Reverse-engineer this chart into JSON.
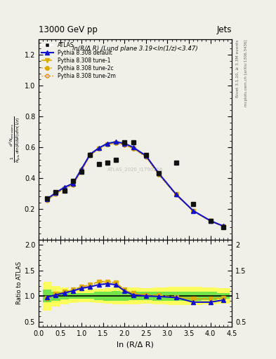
{
  "title_top": "13000 GeV pp",
  "title_right": "Jets",
  "inner_title": "ln(R/Δ R) (Lund plane 3.19<ln(1/z)<3.47)",
  "watermark": "ATLAS_2020_I1790256",
  "xlabel": "ln (R/Δ R)",
  "ylabel_ratio": "Ratio to ATLAS",
  "x_data": [
    0.2,
    0.4,
    0.6,
    0.8,
    1.0,
    1.2,
    1.4,
    1.6,
    1.8,
    2.0,
    2.2,
    2.5,
    2.8,
    3.2,
    3.6,
    4.0,
    4.3
  ],
  "atlas_y": [
    0.27,
    0.31,
    0.32,
    0.38,
    0.44,
    0.55,
    0.49,
    0.5,
    0.52,
    0.63,
    0.63,
    0.55,
    0.43,
    0.5,
    0.23,
    0.12,
    0.08
  ],
  "pythia_default_y": [
    0.265,
    0.305,
    0.34,
    0.365,
    0.46,
    0.555,
    0.595,
    0.625,
    0.635,
    0.625,
    0.6,
    0.545,
    0.43,
    0.295,
    0.188,
    0.123,
    0.088
  ],
  "pythia_tune1_y": [
    0.258,
    0.298,
    0.333,
    0.358,
    0.452,
    0.548,
    0.592,
    0.62,
    0.628,
    0.618,
    0.593,
    0.54,
    0.423,
    0.293,
    0.187,
    0.122,
    0.087
  ],
  "pythia_tune2c_y": [
    0.258,
    0.298,
    0.333,
    0.358,
    0.452,
    0.548,
    0.592,
    0.62,
    0.628,
    0.618,
    0.593,
    0.54,
    0.423,
    0.293,
    0.187,
    0.122,
    0.087
  ],
  "pythia_tune2m_y": [
    0.256,
    0.296,
    0.332,
    0.356,
    0.45,
    0.546,
    0.59,
    0.618,
    0.626,
    0.616,
    0.591,
    0.538,
    0.421,
    0.291,
    0.185,
    0.12,
    0.085
  ],
  "ratio_default": [
    0.98,
    1.02,
    1.06,
    1.1,
    1.15,
    1.18,
    1.22,
    1.24,
    1.22,
    1.1,
    1.02,
    1.0,
    0.99,
    0.97,
    0.88,
    0.88,
    0.92
  ],
  "ratio_tune1": [
    0.96,
    1.04,
    1.08,
    1.12,
    1.18,
    1.22,
    1.28,
    1.28,
    1.26,
    1.12,
    1.05,
    1.02,
    1.01,
    0.98,
    0.95,
    0.95,
    0.96
  ],
  "ratio_tune2c": [
    0.96,
    1.04,
    1.08,
    1.12,
    1.18,
    1.22,
    1.28,
    1.28,
    1.26,
    1.12,
    1.05,
    1.02,
    1.01,
    0.98,
    0.95,
    0.95,
    0.96
  ],
  "ratio_tune2m": [
    0.95,
    1.03,
    1.07,
    1.11,
    1.17,
    1.21,
    1.27,
    1.27,
    1.25,
    1.11,
    1.04,
    1.01,
    1.0,
    0.97,
    0.94,
    0.94,
    0.95
  ],
  "yellow_band_lo": [
    0.72,
    0.8,
    0.84,
    0.87,
    0.88,
    0.88,
    0.86,
    0.85,
    0.84,
    0.84,
    0.84,
    0.85,
    0.84,
    0.82,
    0.82,
    0.84,
    0.85
  ],
  "yellow_band_hi": [
    1.28,
    1.2,
    1.16,
    1.13,
    1.12,
    1.12,
    1.14,
    1.15,
    1.16,
    1.16,
    1.16,
    1.15,
    1.16,
    1.18,
    1.18,
    1.16,
    1.15
  ],
  "green_band_lo": [
    0.88,
    0.91,
    0.93,
    0.94,
    0.94,
    0.94,
    0.92,
    0.91,
    0.9,
    0.91,
    0.92,
    0.92,
    0.91,
    0.91,
    0.91,
    0.92,
    0.94
  ],
  "green_band_hi": [
    1.12,
    1.09,
    1.07,
    1.06,
    1.06,
    1.06,
    1.08,
    1.09,
    1.1,
    1.09,
    1.08,
    1.08,
    1.09,
    1.09,
    1.09,
    1.08,
    1.06
  ],
  "color_default": "#1111cc",
  "color_tune1": "#ddaa00",
  "color_tune2c": "#ddaa00",
  "color_tune2m": "#ee8800",
  "color_atlas": "#111111",
  "ylim_main": [
    0.0,
    1.3
  ],
  "ylim_ratio": [
    0.4,
    2.1
  ],
  "xlim": [
    0.0,
    4.5
  ],
  "bg_color": "#f0f0e8"
}
